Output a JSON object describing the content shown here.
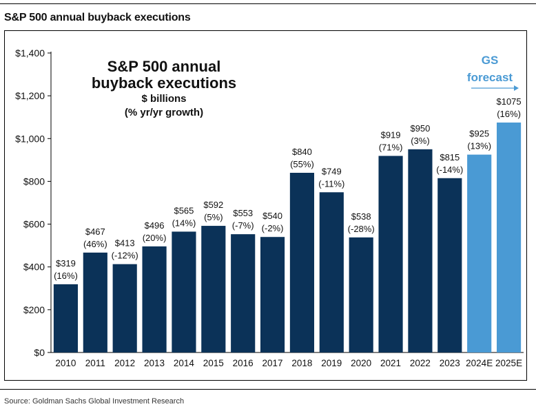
{
  "heading": "S&P 500 annual buyback executions",
  "source": "Source: Goldman Sachs Global Investment Research",
  "colors": {
    "actual": "#0b3258",
    "forecast": "#4a9ad4",
    "forecast_text": "#4a9ad4"
  },
  "chart_data": {
    "type": "bar",
    "title": "S&P 500 annual buyback executions",
    "subtitle_lines": [
      "$ billions",
      "(% yr/yr growth)"
    ],
    "forecast_label": "GS forecast",
    "xlabel": "",
    "ylabel": "",
    "ylim": [
      0,
      1400
    ],
    "y_ticks": [
      0,
      200,
      400,
      600,
      800,
      1000,
      1200,
      1400
    ],
    "y_tick_labels": [
      "$0",
      "$200",
      "$400",
      "$600",
      "$800",
      "$1,000",
      "$1,200",
      "$1,400"
    ],
    "grid": false,
    "categories": [
      "2010",
      "2011",
      "2012",
      "2013",
      "2014",
      "2015",
      "2016",
      "2017",
      "2018",
      "2019",
      "2020",
      "2021",
      "2022",
      "2023",
      "2024E",
      "2025E"
    ],
    "values": [
      319,
      467,
      413,
      496,
      565,
      592,
      553,
      540,
      840,
      749,
      538,
      919,
      950,
      815,
      925,
      1075
    ],
    "value_labels": [
      "$319",
      "$467",
      "$413",
      "$496",
      "$565",
      "$592",
      "$553",
      "$540",
      "$840",
      "$749",
      "$538",
      "$919",
      "$950",
      "$815",
      "$925",
      "$1075"
    ],
    "growth_labels": [
      "(16%)",
      "(46%)",
      "(-12%)",
      "(20%)",
      "(14%)",
      "(5%)",
      "(-7%)",
      "(-2%)",
      "(55%)",
      "(-11%)",
      "(-28%)",
      "(71%)",
      "(3%)",
      "(-14%)",
      "(13%)",
      "(16%)"
    ],
    "forecast": [
      false,
      false,
      false,
      false,
      false,
      false,
      false,
      false,
      false,
      false,
      false,
      false,
      false,
      false,
      true,
      true
    ]
  }
}
